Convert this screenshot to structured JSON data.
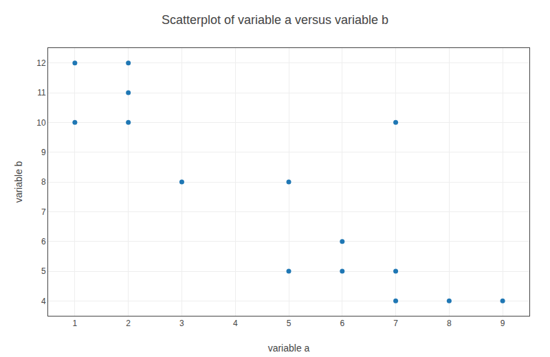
{
  "chart_data": {
    "type": "scatter",
    "title": "Scatterplot of variable a versus variable b",
    "xlabel": "variable a",
    "ylabel": "variable b",
    "x": [
      1,
      1,
      2,
      2,
      2,
      3,
      5,
      5,
      6,
      6,
      7,
      7,
      7,
      8,
      9
    ],
    "values": [
      12,
      10,
      12,
      11,
      10,
      8,
      8,
      5,
      6,
      5,
      10,
      5,
      4,
      4,
      4
    ],
    "xlim": [
      0.5,
      9.5
    ],
    "ylim": [
      3.5,
      12.5
    ],
    "xticks": [
      1,
      2,
      3,
      4,
      5,
      6,
      7,
      8,
      9
    ],
    "yticks": [
      4,
      5,
      6,
      7,
      8,
      9,
      10,
      11,
      12
    ],
    "grid": true
  }
}
